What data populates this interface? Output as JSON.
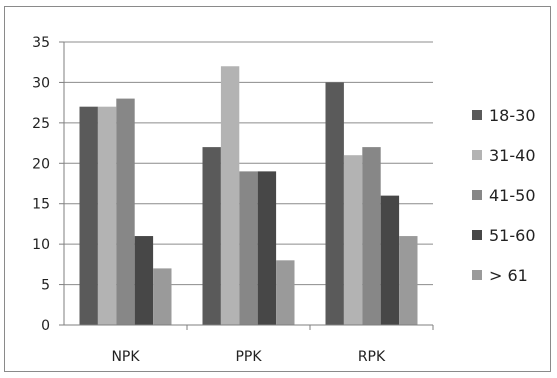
{
  "chart_data": {
    "type": "bar",
    "title": "",
    "xlabel": "",
    "ylabel": "",
    "categories": [
      "NPK",
      "PPK",
      "RPK"
    ],
    "ylim": [
      0,
      35
    ],
    "yticks": [
      0,
      5,
      10,
      15,
      20,
      25,
      30,
      35
    ],
    "grid": true,
    "legend_position": "right",
    "series": [
      {
        "name": "18-30",
        "color": "#5a5a5a",
        "values": [
          27,
          22,
          30
        ]
      },
      {
        "name": "31-40",
        "color": "#b3b3b3",
        "values": [
          27,
          32,
          21
        ]
      },
      {
        "name": "41-50",
        "color": "#878787",
        "values": [
          28,
          19,
          22
        ]
      },
      {
        "name": "51-60",
        "color": "#474747",
        "values": [
          11,
          19,
          16
        ]
      },
      {
        "name": "> 61",
        "color": "#9a9a9a",
        "values": [
          7,
          8,
          11
        ]
      }
    ]
  }
}
